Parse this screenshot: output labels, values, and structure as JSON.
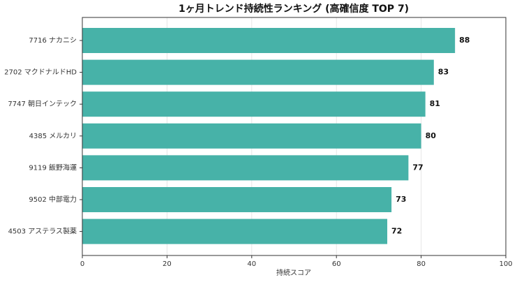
{
  "chart_data": {
    "type": "barh",
    "title": "1ヶ月トレンド持続性ランキング (高確信度 TOP 7)",
    "x_label": "持続スコア",
    "categories": [
      "7716 ナカニシ",
      "2702 マクドナルドHD",
      "7747 朝日インテック",
      "4385 メルカリ",
      "9119 飯野海運",
      "9502 中部電力",
      "4503 アステラス製薬"
    ],
    "values": [
      88,
      83,
      81,
      80,
      77,
      73,
      72
    ],
    "color": "#47b2a8",
    "xlim": [
      0,
      100
    ],
    "xticks": [
      0,
      20,
      40,
      60,
      80,
      100
    ],
    "grid": true
  }
}
